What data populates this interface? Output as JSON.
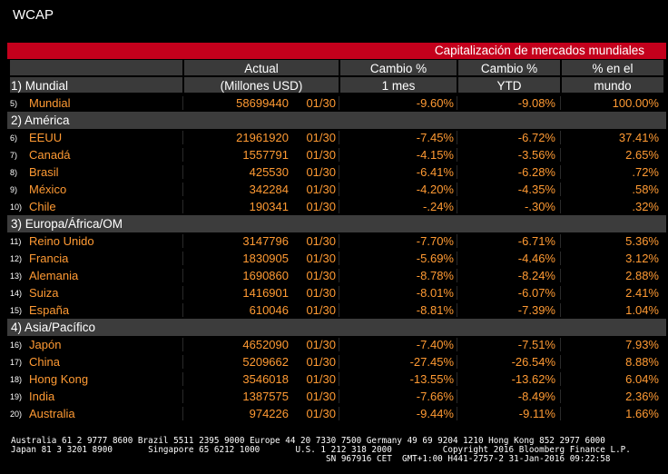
{
  "window": {
    "title": "WCAP"
  },
  "banner": "Capitalización de mercados mundiales",
  "header1": {
    "actual": "Actual",
    "cambio_pct": "Cambio %",
    "cambio_pct2": "Cambio %",
    "pct_world": "% en el"
  },
  "header2": {
    "section": "1) Mundial",
    "millones": "(Millones USD)",
    "mes": "1 mes",
    "ytd": "YTD",
    "mundo": "mundo"
  },
  "rows": [
    {
      "type": "row",
      "num": "5)",
      "name": "Mundial",
      "actual": "58699440",
      "date": "01/30",
      "mes": "-9.60%",
      "ytd": "-9.08%",
      "world": "100.00%"
    },
    {
      "type": "sec",
      "label": "2) América"
    },
    {
      "type": "row",
      "num": "6)",
      "name": "EEUU",
      "actual": "21961920",
      "date": "01/30",
      "mes": "-7.45%",
      "ytd": "-6.72%",
      "world": "37.41%"
    },
    {
      "type": "row",
      "num": "7)",
      "name": "Canadá",
      "actual": "1557791",
      "date": "01/30",
      "mes": "-4.15%",
      "ytd": "-3.56%",
      "world": "2.65%"
    },
    {
      "type": "row",
      "num": "8)",
      "name": "Brasil",
      "actual": "425530",
      "date": "01/30",
      "mes": "-6.41%",
      "ytd": "-6.28%",
      "world": ".72%"
    },
    {
      "type": "row",
      "num": "9)",
      "name": "México",
      "actual": "342284",
      "date": "01/30",
      "mes": "-4.20%",
      "ytd": "-4.35%",
      "world": ".58%"
    },
    {
      "type": "row",
      "num": "10)",
      "name": "Chile",
      "actual": "190341",
      "date": "01/30",
      "mes": "-.24%",
      "ytd": "-.30%",
      "world": ".32%"
    },
    {
      "type": "sec",
      "label": "3) Europa/África/OM"
    },
    {
      "type": "row",
      "num": "11)",
      "name": "Reino Unido",
      "actual": "3147796",
      "date": "01/30",
      "mes": "-7.70%",
      "ytd": "-6.71%",
      "world": "5.36%"
    },
    {
      "type": "row",
      "num": "12)",
      "name": "Francia",
      "actual": "1830905",
      "date": "01/30",
      "mes": "-5.69%",
      "ytd": "-4.46%",
      "world": "3.12%"
    },
    {
      "type": "row",
      "num": "13)",
      "name": "Alemania",
      "actual": "1690860",
      "date": "01/30",
      "mes": "-8.78%",
      "ytd": "-8.24%",
      "world": "2.88%"
    },
    {
      "type": "row",
      "num": "14)",
      "name": "Suiza",
      "actual": "1416901",
      "date": "01/30",
      "mes": "-8.01%",
      "ytd": "-6.07%",
      "world": "2.41%"
    },
    {
      "type": "row",
      "num": "15)",
      "name": "España",
      "actual": "610046",
      "date": "01/30",
      "mes": "-8.81%",
      "ytd": "-7.39%",
      "world": "1.04%"
    },
    {
      "type": "sec",
      "label": "4) Asia/Pacífico"
    },
    {
      "type": "row",
      "num": "16)",
      "name": "Japón",
      "actual": "4652090",
      "date": "01/30",
      "mes": "-7.40%",
      "ytd": "-7.51%",
      "world": "7.93%"
    },
    {
      "type": "row",
      "num": "17)",
      "name": "China",
      "actual": "5209662",
      "date": "01/30",
      "mes": "-27.45%",
      "ytd": "-26.54%",
      "world": "8.88%"
    },
    {
      "type": "row",
      "num": "18)",
      "name": "Hong Kong",
      "actual": "3546018",
      "date": "01/30",
      "mes": "-13.55%",
      "ytd": "-13.62%",
      "world": "6.04%"
    },
    {
      "type": "row",
      "num": "19)",
      "name": "India",
      "actual": "1387575",
      "date": "01/30",
      "mes": "-7.66%",
      "ytd": "-8.49%",
      "world": "2.36%"
    },
    {
      "type": "row",
      "num": "20)",
      "name": "Australia",
      "actual": "974226",
      "date": "01/30",
      "mes": "-9.44%",
      "ytd": "-9.11%",
      "world": "1.66%"
    }
  ],
  "footer": {
    "line1": "Australia 61 2 9777 8600 Brazil 5511 2395 9000 Europe 44 20 7330 7500 Germany 49 69 9204 1210 Hong Kong 852 2977 6000",
    "line2": "Japan 81 3 3201 8900       Singapore 65 6212 1000       U.S. 1 212 318 2000          Copyright 2016 Bloomberg Finance L.P.",
    "line3": "                                                              SN 967916 CET  GMT+1:00 H441-2757-2 31-Jan-2016 09:22:58"
  }
}
